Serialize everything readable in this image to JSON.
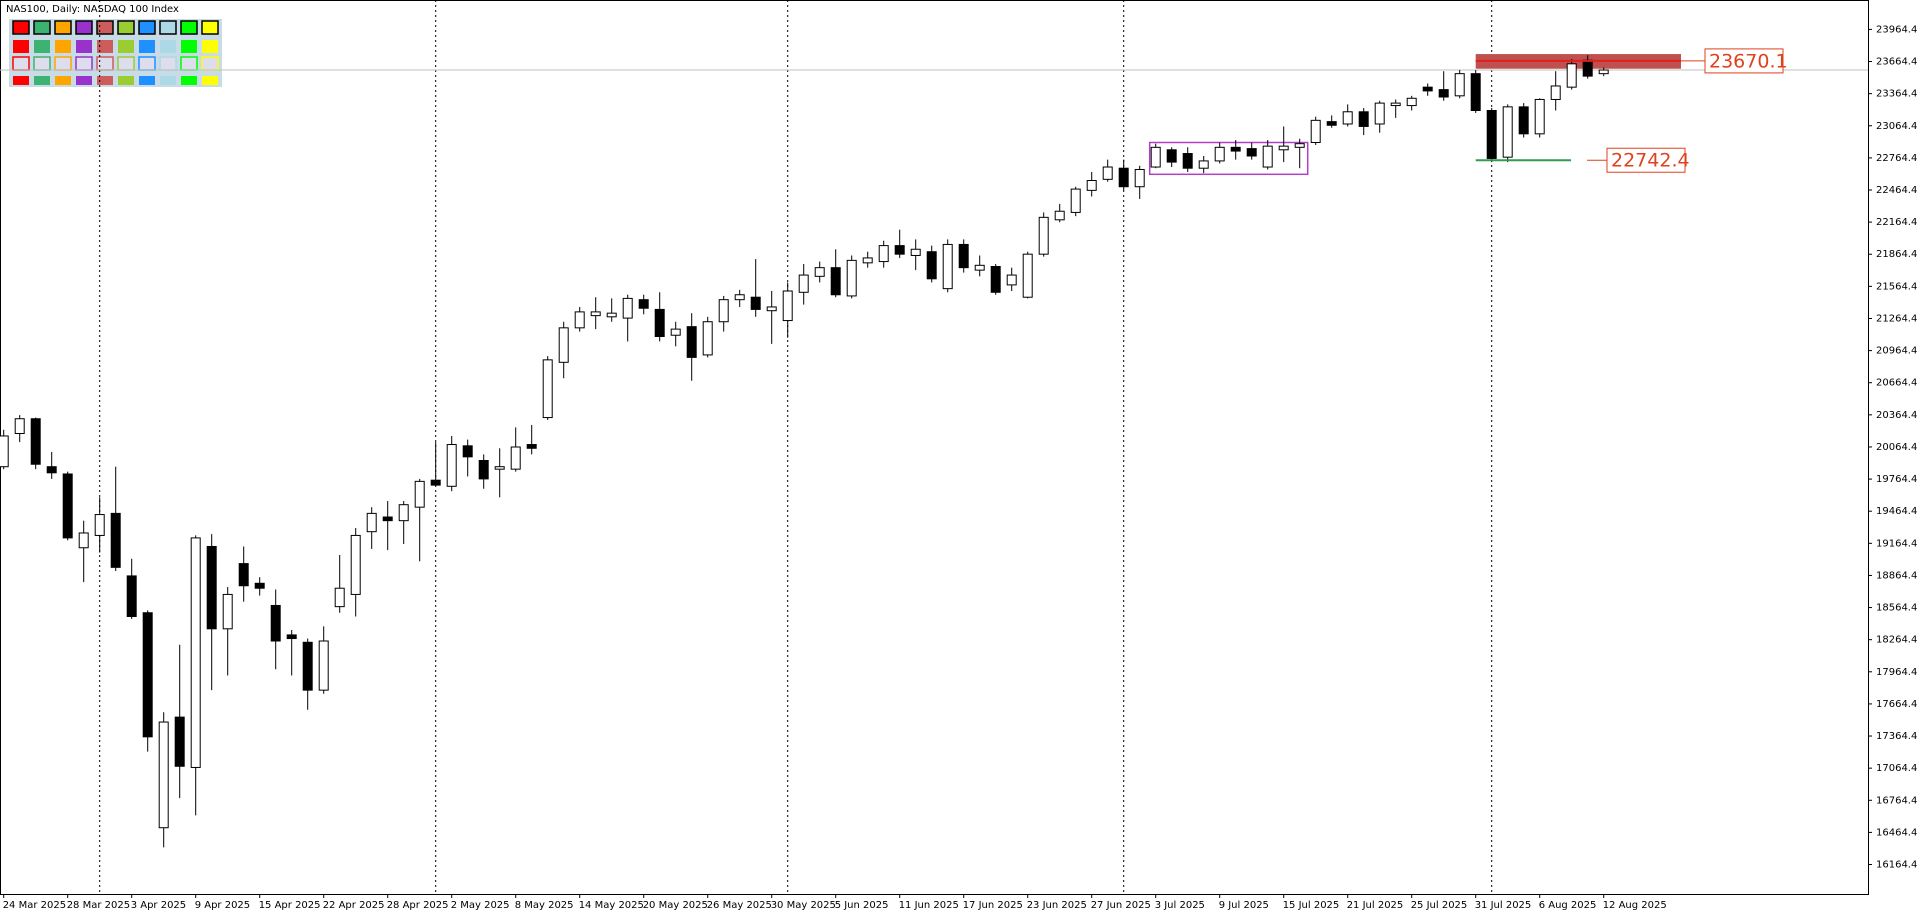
{
  "chart_data": {
    "type": "candlestick",
    "title": "NAS100, Daily:  NASDAQ 100 Index",
    "categories": [
      "24 Mar 2025",
      null,
      null,
      null,
      "28 Mar 2025",
      null,
      null,
      null,
      "3 Apr 2025",
      null,
      null,
      null,
      "9 Apr 2025",
      null,
      null,
      null,
      "15 Apr 2025",
      null,
      null,
      null,
      "22 Apr 2025",
      null,
      null,
      null,
      "28 Apr 2025",
      null,
      null,
      null,
      "2 May 2025",
      null,
      null,
      null,
      "8 May 2025",
      null,
      null,
      null,
      "14 May 2025",
      null,
      null,
      null,
      "20 May 2025",
      null,
      null,
      null,
      "26 May 2025",
      null,
      null,
      null,
      "30 May 2025",
      null,
      null,
      null,
      "5 Jun 2025",
      null,
      null,
      null,
      "11 Jun 2025",
      null,
      null,
      null,
      "17 Jun 2025",
      null,
      null,
      null,
      "23 Jun 2025",
      null,
      null,
      null,
      "27 Jun 2025",
      null,
      null,
      null,
      "3 Jul 2025",
      null,
      null,
      null,
      "9 Jul 2025",
      null,
      null,
      null,
      "15 Jul 2025",
      null,
      null,
      null,
      "21 Jul 2025",
      null,
      null,
      null,
      "25 Jul 2025",
      null,
      null,
      null,
      "31 Jul 2025",
      null,
      null,
      null,
      "6 Aug 2025",
      null,
      null,
      null,
      "12 Aug 2025"
    ],
    "open": [
      19880,
      20190,
      20328,
      19880,
      19812,
      19123,
      19238,
      19444,
      18860,
      18516,
      16508,
      17541,
      17071,
      19135,
      18366,
      18975,
      18791,
      18584,
      18309,
      18240,
      17793,
      18573,
      18687,
      19273,
      19410,
      19376,
      19502,
      19754,
      19697,
      20075,
      19938,
      19857,
      19857,
      20087,
      20339,
      20855,
      21177,
      21291,
      21280,
      21268,
      21440,
      21349,
      21108,
      21188,
      20924,
      21234,
      21440,
      21463,
      21337,
      21245,
      21509,
      21658,
      21739,
      21475,
      21784,
      21796,
      21945,
      21853,
      21888,
      21543,
      21956,
      21716,
      21750,
      21578,
      21463,
      21865,
      22186,
      22255,
      22461,
      22564,
      22668,
      22495,
      22679,
      22840,
      22805,
      22668,
      22736,
      22863,
      22851,
      22679,
      22840,
      22863,
      22908,
      23103,
      23081,
      23195,
      23081,
      23253,
      23253,
      23425,
      23402,
      23344,
      23551,
      23207,
      22771,
      23241,
      22989,
      23310,
      23425,
      23677,
      23551
    ],
    "high": [
      20225,
      20362,
      20339,
      20018,
      19834,
      19376,
      19594,
      19880,
      19020,
      18538,
      17587,
      18217,
      19238,
      19250,
      18756,
      19135,
      18848,
      18733,
      18355,
      18275,
      18389,
      19055,
      19307,
      19502,
      19559,
      19559,
      19766,
      20110,
      20167,
      20133,
      19995,
      20052,
      20247,
      20270,
      20913,
      21234,
      21372,
      21463,
      21452,
      21486,
      21486,
      21509,
      21234,
      21314,
      21280,
      21475,
      21532,
      21819,
      21521,
      21601,
      21773,
      21796,
      21911,
      21853,
      21888,
      21991,
      22094,
      22003,
      21945,
      22003,
      22003,
      21853,
      21773,
      21739,
      21888,
      22255,
      22335,
      22495,
      22633,
      22748,
      22748,
      22691,
      22897,
      22863,
      22863,
      22782,
      22908,
      22931,
      22908,
      22931,
      23058,
      22943,
      23149,
      23161,
      23264,
      23230,
      23298,
      23310,
      23344,
      23459,
      23574,
      23585,
      23585,
      23230,
      23264,
      23276,
      23321,
      23574,
      23688,
      23723,
      23608
    ],
    "low": [
      19857,
      20110,
      19857,
      19766,
      19192,
      18802,
      19078,
      18906,
      18458,
      17219,
      16325,
      16784,
      16623,
      17793,
      17930,
      18619,
      18676,
      17988,
      17930,
      17610,
      17759,
      18516,
      18481,
      19112,
      19101,
      19158,
      18997,
      19697,
      19651,
      19789,
      19674,
      19594,
      19834,
      19995,
      20316,
      20706,
      21142,
      21165,
      21234,
      21050,
      21303,
      21050,
      21004,
      20683,
      20901,
      21142,
      21372,
      21280,
      21027,
      21085,
      21394,
      21601,
      21463,
      21452,
      21739,
      21739,
      21830,
      21716,
      21601,
      21509,
      21693,
      21658,
      21486,
      21521,
      21452,
      21842,
      22163,
      22220,
      22404,
      22542,
      22461,
      22381,
      22668,
      22679,
      22633,
      22622,
      22713,
      22748,
      22748,
      22656,
      22725,
      22668,
      22885,
      23046,
      23058,
      22977,
      23000,
      23138,
      23207,
      23344,
      23298,
      23321,
      23184,
      22725,
      22725,
      22954,
      22954,
      23207,
      23402,
      23505,
      23528
    ],
    "close": [
      20167,
      20328,
      19903,
      19823,
      19215,
      19261,
      19433,
      18940,
      18481,
      17357,
      17495,
      17082,
      19215,
      18366,
      18687,
      18768,
      18745,
      18252,
      18275,
      17793,
      18252,
      18745,
      19238,
      19444,
      19376,
      19525,
      19743,
      19708,
      20087,
      19972,
      19766,
      19880,
      20064,
      20052,
      20878,
      21177,
      21326,
      21326,
      21314,
      21452,
      21360,
      21096,
      21165,
      20901,
      21234,
      21440,
      21486,
      21349,
      21372,
      21521,
      21670,
      21739,
      21486,
      21807,
      21830,
      21945,
      21865,
      21911,
      21635,
      21956,
      21739,
      21761,
      21509,
      21670,
      21865,
      22209,
      22266,
      22473,
      22553,
      22679,
      22495,
      22656,
      22863,
      22725,
      22668,
      22736,
      22863,
      22828,
      22782,
      22874,
      22874,
      22897,
      23115,
      23069,
      23195,
      23058,
      23276,
      23276,
      23321,
      23390,
      23333,
      23551,
      23207,
      22759,
      23241,
      22989,
      23310,
      23436,
      23643,
      23528,
      23585
    ],
    "up_color": "#ffffff",
    "down_color": "#000000",
    "ylim": [
      15889,
      24239
    ],
    "yticks": [
      16164.4,
      16464.4,
      16764.4,
      17064.4,
      17364.4,
      17664.4,
      17964.4,
      18264.4,
      18564.4,
      18864.4,
      19164.4,
      19464.4,
      19764.4,
      20064.4,
      20364.4,
      20664.4,
      20964.4,
      21264.4,
      21564.4,
      21864.4,
      22164.4,
      22464.4,
      22764.4,
      23064.4,
      23364.4,
      23664.4,
      23964.4
    ],
    "zones": [
      {
        "top": 23734,
        "bottom": 23597,
        "color": "#c0504d",
        "fill": true
      },
      {
        "top": 22908,
        "bottom": 22611,
        "color": "#b040c8",
        "fill": false
      }
    ],
    "annotations": [
      {
        "value": 23670.1,
        "color": "#e0401e",
        "line_color": "#e02020"
      },
      {
        "value": 22742.4,
        "color": "#e0401e",
        "line_color": "#2e9e4e"
      }
    ]
  }
}
